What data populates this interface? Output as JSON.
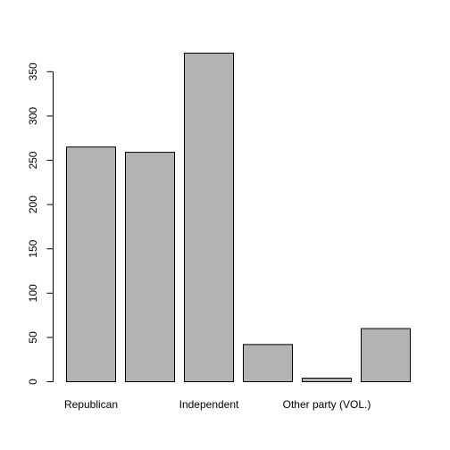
{
  "chart_data": {
    "type": "bar",
    "categories": [
      "Republican",
      "",
      "Independent",
      "",
      "Other party (VOL.)",
      ""
    ],
    "values": [
      265,
      259,
      371,
      42,
      4,
      60
    ],
    "title": "",
    "xlabel": "",
    "ylabel": "",
    "ylim": [
      0,
      371
    ],
    "yticks": [
      0,
      50,
      100,
      150,
      200,
      250,
      300,
      350
    ],
    "grid": false,
    "bar_color": "#b3b3b3",
    "bar_border_color": "#000000"
  }
}
